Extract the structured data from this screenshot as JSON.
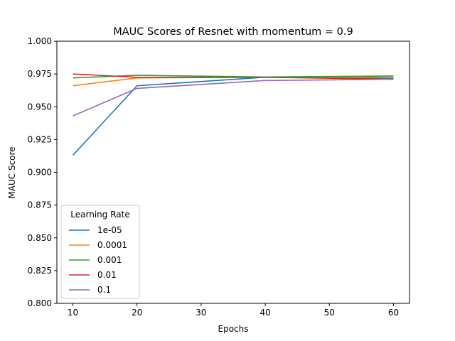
{
  "chart_data": {
    "type": "line",
    "title": "MAUC Scores of Resnet with momentum = 0.9",
    "xlabel": "Epochs",
    "ylabel": "MAUC Score",
    "x": [
      10,
      20,
      40,
      60
    ],
    "xlim": [
      7.5,
      62.5
    ],
    "ylim": [
      0.8,
      1.0
    ],
    "xticks": [
      "10",
      "20",
      "30",
      "40",
      "50",
      "60"
    ],
    "xtick_values": [
      10,
      20,
      30,
      40,
      50,
      60
    ],
    "yticks": [
      "0.800",
      "0.825",
      "0.850",
      "0.875",
      "0.900",
      "0.925",
      "0.950",
      "0.975",
      "1.000"
    ],
    "ytick_values": [
      0.8,
      0.825,
      0.85,
      0.875,
      0.9,
      0.925,
      0.95,
      0.975,
      1.0
    ],
    "grid": false,
    "legend": {
      "title": "Learning Rate",
      "placement": "lower-left"
    },
    "series": [
      {
        "name": "1e-05",
        "color": "#1f77b4",
        "values": [
          0.913,
          0.966,
          0.9725,
          0.9715
        ]
      },
      {
        "name": "0.0001",
        "color": "#ff7f0e",
        "values": [
          0.966,
          0.972,
          0.9725,
          0.9725
        ]
      },
      {
        "name": "0.001",
        "color": "#2ca02c",
        "values": [
          0.972,
          0.974,
          0.9727,
          0.9735
        ]
      },
      {
        "name": "0.01",
        "color": "#d62728",
        "values": [
          0.975,
          0.9725,
          0.9725,
          0.971
        ]
      },
      {
        "name": "0.1",
        "color": "#9467bd",
        "values": [
          0.943,
          0.964,
          0.97,
          0.971
        ]
      }
    ]
  }
}
